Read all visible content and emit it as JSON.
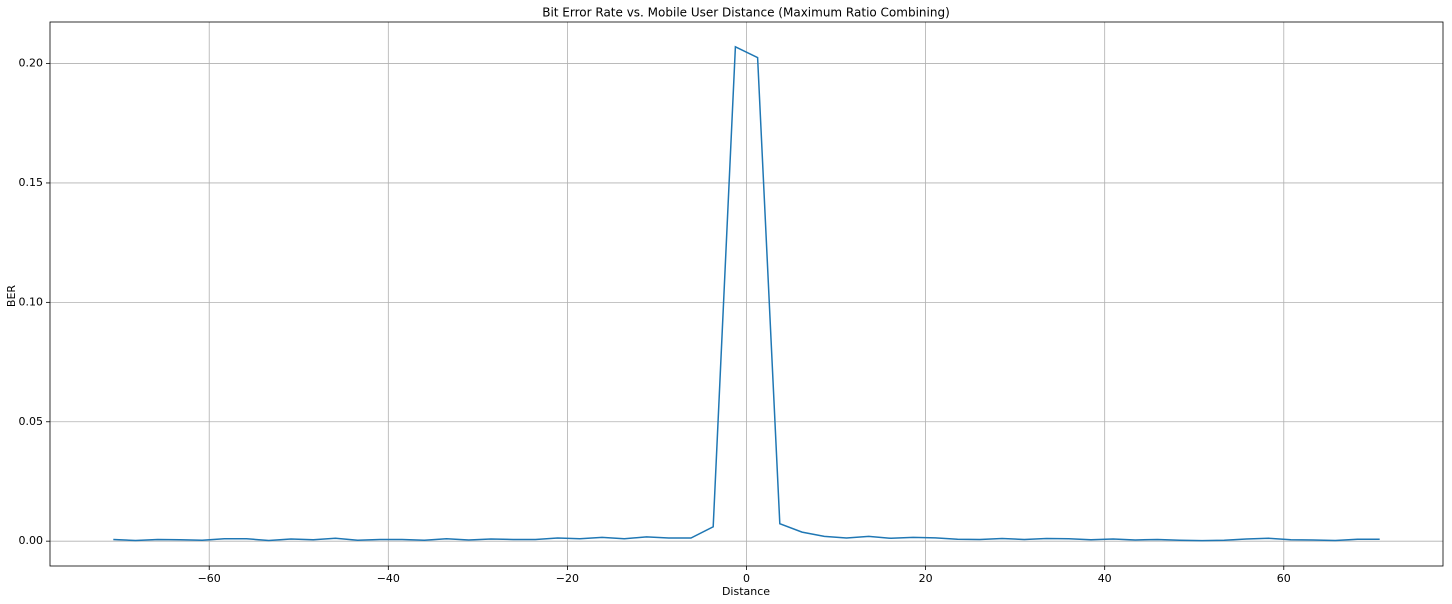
{
  "chart_data": {
    "type": "line",
    "title": "Bit Error Rate vs. Mobile User Distance (Maximum Ratio Combining)",
    "xlabel": "Distance",
    "ylabel": "BER",
    "x": [
      -70.71,
      -68.23,
      -65.75,
      -63.27,
      -60.79,
      -58.31,
      -55.83,
      -53.35,
      -50.87,
      -48.38,
      -45.9,
      -43.42,
      -40.94,
      -38.46,
      -35.98,
      -33.5,
      -31.02,
      -28.54,
      -26.05,
      -23.57,
      -21.09,
      -18.61,
      -16.13,
      -13.65,
      -11.17,
      -8.69,
      -6.2,
      -3.72,
      -1.24,
      1.24,
      3.72,
      6.2,
      8.69,
      11.17,
      13.65,
      16.13,
      18.61,
      21.09,
      23.57,
      26.05,
      28.54,
      31.02,
      33.5,
      35.98,
      38.46,
      40.94,
      43.42,
      45.9,
      48.38,
      50.87,
      53.35,
      55.83,
      58.31,
      60.79,
      63.27,
      65.75,
      68.23,
      70.71
    ],
    "series": [
      {
        "name": "BER",
        "color": "#1f77b4",
        "values": [
          0.0007,
          0.0003,
          0.0007,
          0.0006,
          0.0004,
          0.001,
          0.001,
          0.0003,
          0.0009,
          0.0006,
          0.0012,
          0.0004,
          0.0007,
          0.0007,
          0.0004,
          0.001,
          0.0005,
          0.0009,
          0.0007,
          0.0007,
          0.0013,
          0.001,
          0.0016,
          0.001,
          0.0018,
          0.0013,
          0.0013,
          0.006,
          0.207,
          0.2025,
          0.0073,
          0.0038,
          0.002,
          0.0013,
          0.002,
          0.0012,
          0.0016,
          0.0014,
          0.0008,
          0.0007,
          0.0011,
          0.0007,
          0.0011,
          0.001,
          0.0006,
          0.0009,
          0.0005,
          0.0007,
          0.0004,
          0.0002,
          0.0004,
          0.0009,
          0.0012,
          0.0006,
          0.0005,
          0.0003,
          0.0008,
          0.0008
        ]
      }
    ],
    "xlim": [
      -77.78,
      77.78
    ],
    "ylim": [
      -0.0104,
      0.2174
    ],
    "xticks": [
      {
        "value": -60,
        "label": "−60"
      },
      {
        "value": -40,
        "label": "−40"
      },
      {
        "value": -20,
        "label": "−20"
      },
      0,
      20,
      40,
      60
    ],
    "yticks": [
      {
        "value": 0,
        "label": "0.00"
      },
      {
        "value": 0.05,
        "label": "0.05"
      },
      {
        "value": 0.1,
        "label": "0.10"
      },
      {
        "value": 0.15,
        "label": "0.15"
      },
      {
        "value": 0.2,
        "label": "0.20"
      }
    ],
    "grid": true
  }
}
